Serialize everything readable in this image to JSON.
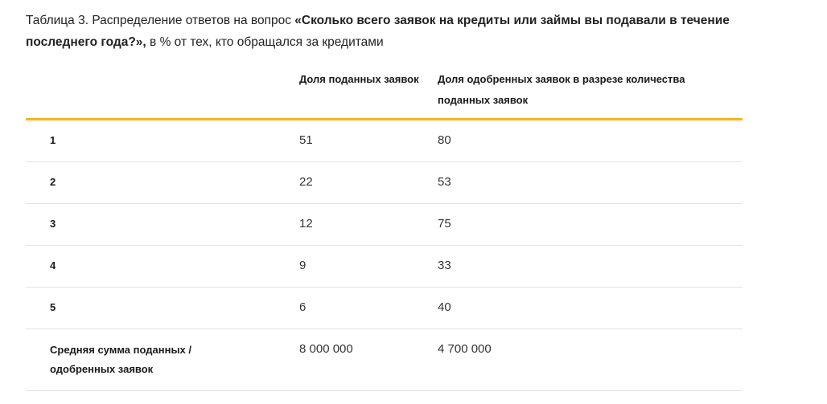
{
  "caption": {
    "prefix": "Таблица 3. Распределение ответов на вопрос ",
    "question": "«Сколько всего заявок на кредиты или займы вы подавали в течение последнего года?»,",
    "suffix": " в % от тех, кто обращался за кредитами"
  },
  "table": {
    "headers": [
      "",
      "Доля поданных заявок",
      "Доля одобренных заявок в разрезе количества поданных заявок"
    ],
    "rows": [
      [
        "1",
        "51",
        "80"
      ],
      [
        "2",
        "22",
        "53"
      ],
      [
        "3",
        "12",
        "75"
      ],
      [
        "4",
        "9",
        "33"
      ],
      [
        "5",
        "6",
        "40"
      ],
      [
        "Средняя сумма поданных / одобренных заявок",
        "8 000 000",
        "4 700 000"
      ]
    ]
  },
  "colors": {
    "header_rule": "#f5b324",
    "row_rule": "#e3e3e3"
  }
}
